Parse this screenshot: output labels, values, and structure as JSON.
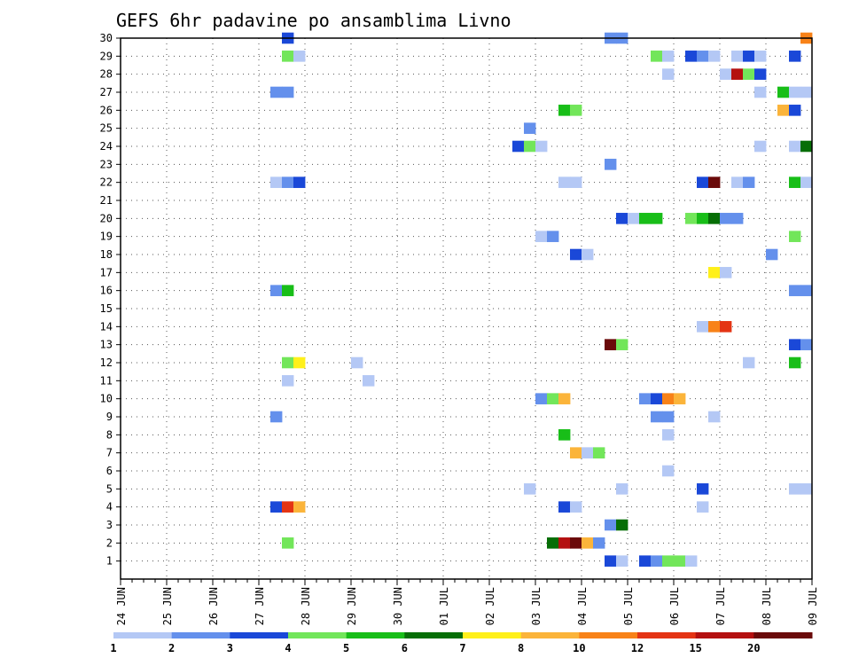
{
  "chart_data": {
    "type": "heatmap",
    "title": "GEFS 6hr padavine po ansamblima Livno",
    "y": {
      "min": 0,
      "max": 30,
      "ticks": [
        1,
        2,
        3,
        4,
        5,
        6,
        7,
        8,
        9,
        10,
        11,
        12,
        13,
        14,
        15,
        16,
        17,
        18,
        19,
        20,
        21,
        22,
        23,
        24,
        25,
        26,
        27,
        28,
        29,
        30
      ],
      "tick_labels": [
        "1",
        "2",
        "3",
        "4",
        "5",
        "6",
        "7",
        "8",
        "9",
        "10",
        "11",
        "12",
        "13",
        "14",
        "15",
        "16",
        "17",
        "18",
        "19",
        "20",
        "21",
        "22",
        "23",
        "24",
        "25",
        "26",
        "27",
        "28",
        "29",
        "30"
      ]
    },
    "x": {
      "min": 0,
      "max": 60,
      "ticks": [
        0,
        4,
        8,
        12,
        16,
        20,
        24,
        28,
        32,
        36,
        40,
        44,
        48,
        52,
        56,
        60
      ],
      "tick_labels": [
        "24 JUN",
        "25 JUN",
        "26 JUN",
        "27 JUN",
        "28 JUN",
        "29 JUN",
        "30 JUN",
        "01 JUL",
        "02 JUL",
        "03 JUL",
        "04 JUL",
        "05 JUL",
        "06 JUL",
        "07 JUL",
        "08 JUL",
        "09 JUL"
      ]
    },
    "grid": true,
    "colorbar": {
      "labels": [
        "1",
        "2",
        "3",
        "4",
        "5",
        "6",
        "7",
        "8",
        "10",
        "12",
        "15",
        "20"
      ],
      "colors": [
        "#b4c8f5",
        "#6490ec",
        "#1a48d8",
        "#72e65a",
        "#18be18",
        "#066e06",
        "#fff01a",
        "#fbb43a",
        "#f88218",
        "#e43414",
        "#b41010",
        "#6a0a0a"
      ]
    },
    "cells": [
      [
        14,
        30,
        3
      ],
      [
        42,
        30,
        2
      ],
      [
        43,
        30,
        2
      ],
      [
        59,
        30,
        9
      ],
      [
        14,
        29,
        4
      ],
      [
        15,
        29,
        1
      ],
      [
        46,
        29,
        4
      ],
      [
        47,
        29,
        1
      ],
      [
        49,
        29,
        3
      ],
      [
        50,
        29,
        2
      ],
      [
        51,
        29,
        1
      ],
      [
        53,
        29,
        1
      ],
      [
        54,
        29,
        3
      ],
      [
        55,
        29,
        1
      ],
      [
        58,
        29,
        3
      ],
      [
        47,
        28,
        1
      ],
      [
        52,
        28,
        1
      ],
      [
        53,
        28,
        11
      ],
      [
        54,
        28,
        4
      ],
      [
        55,
        28,
        3
      ],
      [
        13,
        27,
        2
      ],
      [
        14,
        27,
        2
      ],
      [
        55,
        27,
        1
      ],
      [
        57,
        27,
        5
      ],
      [
        58,
        27,
        1
      ],
      [
        59,
        27,
        1
      ],
      [
        38,
        26,
        5
      ],
      [
        39,
        26,
        4
      ],
      [
        57,
        26,
        8
      ],
      [
        58,
        26,
        3
      ],
      [
        35,
        25,
        2
      ],
      [
        34,
        24,
        3
      ],
      [
        35,
        24,
        4
      ],
      [
        36,
        24,
        1
      ],
      [
        55,
        24,
        1
      ],
      [
        58,
        24,
        1
      ],
      [
        59,
        24,
        6
      ],
      [
        42,
        23,
        2
      ],
      [
        13,
        22,
        1
      ],
      [
        14,
        22,
        2
      ],
      [
        15,
        22,
        3
      ],
      [
        38,
        22,
        1
      ],
      [
        39,
        22,
        1
      ],
      [
        50,
        22,
        3
      ],
      [
        51,
        22,
        12
      ],
      [
        53,
        22,
        1
      ],
      [
        54,
        22,
        2
      ],
      [
        58,
        22,
        5
      ],
      [
        59,
        22,
        1
      ],
      [
        43,
        20,
        3
      ],
      [
        44,
        20,
        1
      ],
      [
        45,
        20,
        5
      ],
      [
        46,
        20,
        5
      ],
      [
        49,
        20,
        4
      ],
      [
        50,
        20,
        5
      ],
      [
        51,
        20,
        6
      ],
      [
        52,
        20,
        2
      ],
      [
        53,
        20,
        2
      ],
      [
        36,
        19,
        1
      ],
      [
        37,
        19,
        2
      ],
      [
        58,
        19,
        4
      ],
      [
        39,
        18,
        3
      ],
      [
        40,
        18,
        1
      ],
      [
        56,
        18,
        2
      ],
      [
        51,
        17,
        7
      ],
      [
        52,
        17,
        1
      ],
      [
        13,
        16,
        2
      ],
      [
        14,
        16,
        5
      ],
      [
        58,
        16,
        2
      ],
      [
        59,
        16,
        2
      ],
      [
        50,
        14,
        1
      ],
      [
        51,
        14,
        9
      ],
      [
        52,
        14,
        10
      ],
      [
        42,
        13,
        12
      ],
      [
        43,
        13,
        4
      ],
      [
        58,
        13,
        3
      ],
      [
        59,
        13,
        2
      ],
      [
        14,
        12,
        4
      ],
      [
        15,
        12,
        7
      ],
      [
        20,
        12,
        1
      ],
      [
        54,
        12,
        1
      ],
      [
        58,
        12,
        5
      ],
      [
        14,
        11,
        1
      ],
      [
        21,
        11,
        1
      ],
      [
        36,
        10,
        2
      ],
      [
        37,
        10,
        4
      ],
      [
        38,
        10,
        8
      ],
      [
        45,
        10,
        2
      ],
      [
        46,
        10,
        3
      ],
      [
        47,
        10,
        9
      ],
      [
        48,
        10,
        8
      ],
      [
        13,
        9,
        2
      ],
      [
        46,
        9,
        2
      ],
      [
        47,
        9,
        2
      ],
      [
        51,
        9,
        1
      ],
      [
        38,
        8,
        5
      ],
      [
        47,
        8,
        1
      ],
      [
        39,
        7,
        8
      ],
      [
        40,
        7,
        1
      ],
      [
        41,
        7,
        4
      ],
      [
        47,
        6,
        1
      ],
      [
        35,
        5,
        1
      ],
      [
        43,
        5,
        1
      ],
      [
        50,
        5,
        3
      ],
      [
        58,
        5,
        1
      ],
      [
        59,
        5,
        1
      ],
      [
        13,
        4,
        3
      ],
      [
        14,
        4,
        10
      ],
      [
        15,
        4,
        8
      ],
      [
        38,
        4,
        3
      ],
      [
        39,
        4,
        1
      ],
      [
        50,
        4,
        1
      ],
      [
        42,
        3,
        2
      ],
      [
        43,
        3,
        6
      ],
      [
        37,
        2,
        6
      ],
      [
        38,
        2,
        11
      ],
      [
        39,
        2,
        12
      ],
      [
        40,
        2,
        8
      ],
      [
        41,
        2,
        2
      ],
      [
        14,
        2,
        4
      ],
      [
        42,
        1,
        3
      ],
      [
        43,
        1,
        1
      ],
      [
        45,
        1,
        3
      ],
      [
        46,
        1,
        2
      ],
      [
        47,
        1,
        4
      ],
      [
        48,
        1,
        4
      ],
      [
        49,
        1,
        1
      ]
    ]
  }
}
